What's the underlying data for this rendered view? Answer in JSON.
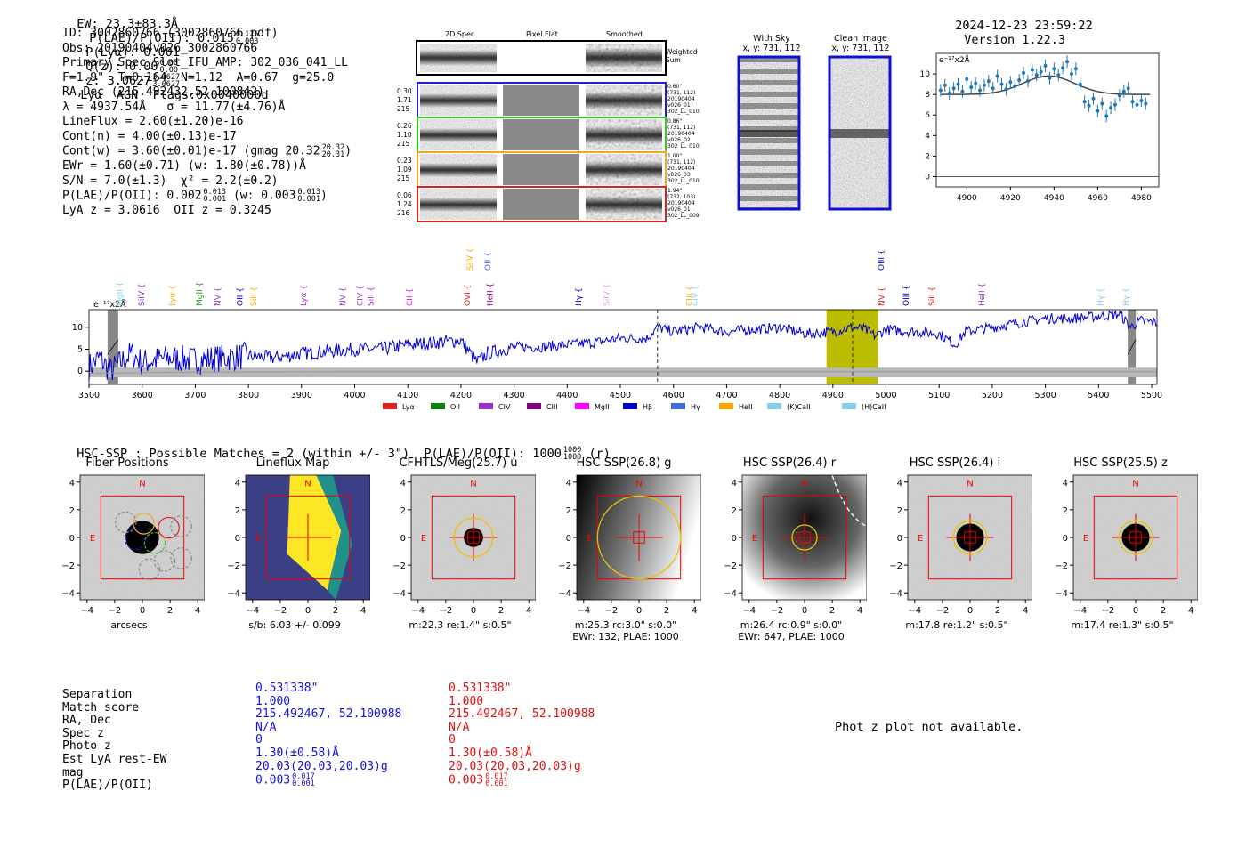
{
  "header": {
    "ew": "EW: 23.3±83.3Å",
    "plae_label": "P(LAE)/P(OII): 0.015",
    "plae_hi": "0.126",
    "plae_lo": "0.003",
    "plya": "P(Lyα): 0.001",
    "qz_label": "Q(z): 0.00",
    "qz_hi": "0.00",
    "qz_lo": "0.00",
    "z_label": "z: 3.0627",
    "z_hi": "3.0627",
    "z_lo": "3.0627",
    "tail": "Lyα  AGN  Flags:0x0040000d",
    "timestamp": "2024-12-23 23:59:22",
    "version": "Version 1.22.3"
  },
  "info": {
    "id": "ID: 3002860766 (3002860766.pdf)",
    "obs": "Obs: 20190404v026_3002860766",
    "primary": "Primary Spec_Slot_IFU_AMP: 302_036_041_LL",
    "fiber": "F=1.9\"  T=0.164  N=1.12  A=0.67  g=25.0",
    "radec": "RA,Dec (215.492432,52.100842)",
    "lambda": "λ = 4937.54Å   σ = 11.77(±4.76)Å",
    "lineflux": "LineFlux = 2.60(±1.20)e-16",
    "contn": "Cont(n) = 4.00(±0.13)e-17",
    "contw": "Cont(w) = 3.60(±0.01)e-17 (gmag 20.32",
    "contw_hi": "20.32",
    "contw_lo": "20.31",
    "contw_end": ")",
    "ewr": "EWr = 1.60(±0.71) (w: 1.80(±0.78))Å",
    "sn": "S/N = 7.0(±1.3)  χ² = 2.2(±0.2)",
    "plae": "P(LAE)/P(OII): 0.002",
    "plae_hi": "0.013",
    "plae_lo": "0.001",
    "plae_w": "(w: 0.003",
    "plae_w_hi": "0.013",
    "plae_w_lo": "0.001",
    "plae_end": ")",
    "lya": "LyA z = 3.0616  OII z = 0.3245"
  },
  "spec2d": {
    "col_labels": [
      "2D Spec",
      "Pixel Flat",
      "Smoothed"
    ],
    "weighted_sum": "Weighted Sum",
    "exposures": [
      {
        "left": [
          "0.30",
          "1.71",
          "215"
        ],
        "right": [
          "0.60\"",
          "(731, 112)",
          "20190404",
          "v026_01",
          "302_LL_010"
        ],
        "color": "#1f1fd8"
      },
      {
        "left": [
          "0.26",
          "1.10",
          "215"
        ],
        "right": [
          "0.86\"",
          "(731, 112)",
          "20190404",
          "v026_02",
          "302_LL_010"
        ],
        "color": "#2ecc20"
      },
      {
        "left": [
          "0.23",
          "1.09",
          "215"
        ],
        "right": [
          "1.00\"",
          "(731, 112)",
          "20190404",
          "v026_03",
          "302_LL_010"
        ],
        "color": "#f5a623"
      },
      {
        "left": [
          "0.06",
          "1.24",
          "216"
        ],
        "right": [
          "1.94\"",
          "(732, 103)",
          "20190404",
          "v026_01",
          "302_LL_009"
        ],
        "color": "#e02020"
      }
    ]
  },
  "stamps": {
    "with_sky": "With Sky",
    "with_sky_xy": "x, y: 731, 112",
    "clean": "Clean Image",
    "clean_xy": "x, y: 731, 112"
  },
  "fit_chart": {
    "unit": "e⁻¹⁷x2Å"
  },
  "spectrum_chart": {
    "unit": "e⁻¹⁷x2Å",
    "line_labels": [
      {
        "name": "MgII",
        "x": 3558,
        "color": "#87ceeb",
        "row": 0
      },
      {
        "name": "SiIV",
        "x": 3599,
        "color": "#8a2be2",
        "row": 0
      },
      {
        "name": "Lyα",
        "x": 3657,
        "color": "#ffa500",
        "row": 0
      },
      {
        "name": "MgII",
        "x": 3708,
        "color": "#228b22",
        "row": 0
      },
      {
        "name": "NV",
        "x": 3742,
        "color": "#9932cc",
        "row": 0
      },
      {
        "name": "OII",
        "x": 3784,
        "color": "#0000cd",
        "row": 0
      },
      {
        "name": "SiII",
        "x": 3810,
        "color": "#ffa500",
        "row": 0
      },
      {
        "name": "Lyα",
        "x": 3904,
        "color": "#9932cc",
        "row": 0
      },
      {
        "name": "NV",
        "x": 3977,
        "color": "#9932cc",
        "row": 0
      },
      {
        "name": "CIV",
        "x": 4010,
        "color": "#9932cc",
        "row": 0
      },
      {
        "name": "SiII",
        "x": 4030,
        "color": "#9932cc",
        "row": 0
      },
      {
        "name": "CII",
        "x": 4103,
        "color": "#ff00ff",
        "row": 0
      },
      {
        "name": "OVI",
        "x": 4212,
        "color": "#e02020",
        "row": 0
      },
      {
        "name": "HeII",
        "x": 4255,
        "color": "#8b008b",
        "row": 0
      },
      {
        "name": "SiIV",
        "x": 4217,
        "color": "#ffa500",
        "row": 1
      },
      {
        "name": "OII",
        "x": 4250,
        "color": "#4169e1",
        "row": 1
      },
      {
        "name": "Hγ",
        "x": 4421,
        "color": "#0000cd",
        "row": 0
      },
      {
        "name": "SiIV",
        "x": 4474,
        "color": "#dda0dd",
        "row": 0
      },
      {
        "name": "CIII",
        "x": 4630,
        "color": "#ffa500",
        "row": 0
      },
      {
        "name": "CIV",
        "x": 4640,
        "color": "#87ceeb",
        "row": 0
      },
      {
        "name": "OIII",
        "x": 4991,
        "color": "#0000cd",
        "row": 1
      },
      {
        "name": "NV",
        "x": 4992,
        "color": "#e02020",
        "row": 0
      },
      {
        "name": "OIII",
        "x": 5038,
        "color": "#0000cd",
        "row": 0
      },
      {
        "name": "SiII",
        "x": 5086,
        "color": "#e02020",
        "row": 0
      },
      {
        "name": "HeII",
        "x": 5180,
        "color": "#9932cc",
        "row": 0
      },
      {
        "name": "Hγ",
        "x": 5404,
        "color": "#87ceeb",
        "row": 0
      },
      {
        "name": "Hγ",
        "x": 5451,
        "color": "#87ceeb",
        "row": 0
      }
    ],
    "legend": [
      {
        "name": "Lyα",
        "color": "#e02020"
      },
      {
        "name": "OII",
        "color": "#108010"
      },
      {
        "name": "CIV",
        "color": "#9932cc"
      },
      {
        "name": "CIII",
        "color": "#800080"
      },
      {
        "name": "MgII",
        "color": "#ff00ff"
      },
      {
        "name": "Hβ",
        "color": "#0000cd"
      },
      {
        "name": "Hγ",
        "color": "#4169e1"
      },
      {
        "name": "HeII",
        "color": "#ffa500"
      },
      {
        "name": "(K)CaII",
        "color": "#87ceeb"
      },
      {
        "name": "(H)CaII",
        "color": "#87ceeb"
      }
    ]
  },
  "hsc": {
    "summary": "HSC-SSP : Possible Matches = 2 (within +/- 3\")  P(LAE)/P(OII): 1000",
    "summary_hi": "1000",
    "summary_lo": "1000",
    "summary_end": "(r)",
    "panels": [
      {
        "title": "Fiber Positions",
        "caption": [
          "arcsecs"
        ]
      },
      {
        "title": "Lineflux Map",
        "caption": [
          "s/b: 6.03 +/- 0.099"
        ]
      },
      {
        "title": "CFHTLS/Meg(25.7) u",
        "caption": [
          "m:22.3  re:1.4\"  s:0.5\""
        ]
      },
      {
        "title": "HSC SSP(26.8) g",
        "caption": [
          "m:25.3 rc:3.0\"  s:0.0\"",
          "EWr: 132, PLAE: 1000"
        ]
      },
      {
        "title": "HSC SSP(26.4) r",
        "caption": [
          "m:26.4 rc:0.9\"  s:0.0\"",
          "EWr: 647, PLAE: 1000"
        ]
      },
      {
        "title": "HSC SSP(26.4) i",
        "caption": [
          "m:17.8  re:1.2\"  s:0.5\""
        ]
      },
      {
        "title": "HSC SSP(25.5) z",
        "caption": [
          "m:17.4  re:1.3\"  s:0.5\""
        ]
      }
    ],
    "north": "N",
    "east": "E"
  },
  "table": {
    "labels": [
      "Separation",
      "Match score",
      "RA, Dec",
      "Spec z",
      "Photo z",
      "Est LyA rest-EW",
      "mag",
      "P(LAE)/P(OII)"
    ],
    "blue": [
      "0.531338\"",
      "1.000",
      "215.492467, 52.100988",
      "N/A",
      "0",
      "1.30(±0.58)Å",
      "20.03(20.03,20.03)g",
      "0.003"
    ],
    "blue_plae_hi": "0.017",
    "blue_plae_lo": "0.001",
    "red": [
      "0.531338\"",
      "1.000",
      "215.492467, 52.100988",
      "N/A",
      "0",
      "1.30(±0.58)Å",
      "20.03(20.03,20.03)g",
      "0.003"
    ],
    "red_plae_hi": "0.017",
    "red_plae_lo": "0.001",
    "colors": {
      "blue": "#1010e0",
      "red": "#e01010"
    }
  },
  "photz_msg": "Phot z plot not available.",
  "chart_data": [
    {
      "type": "scatter",
      "title": "",
      "xlabel": "",
      "ylabel": "e⁻¹⁷x2Å",
      "xlim": [
        4886,
        4988
      ],
      "ylim": [
        -1,
        12
      ],
      "xticks": [
        4900,
        4920,
        4940,
        4960,
        4980
      ],
      "yticks": [
        0,
        2,
        4,
        6,
        8,
        10
      ],
      "points": [
        [
          4888,
          8.4
        ],
        [
          4890,
          8.9
        ],
        [
          4892,
          8.1
        ],
        [
          4894,
          8.6
        ],
        [
          4896,
          9.0
        ],
        [
          4898,
          8.3
        ],
        [
          4900,
          9.5
        ],
        [
          4902,
          8.7
        ],
        [
          4904,
          9.1
        ],
        [
          4906,
          8.4
        ],
        [
          4908,
          8.9
        ],
        [
          4910,
          9.3
        ],
        [
          4912,
          8.6
        ],
        [
          4914,
          9.8
        ],
        [
          4916,
          9.0
        ],
        [
          4918,
          8.5
        ],
        [
          4920,
          9.2
        ],
        [
          4922,
          8.8
        ],
        [
          4924,
          9.4
        ],
        [
          4926,
          10.1
        ],
        [
          4928,
          9.3
        ],
        [
          4930,
          10.4
        ],
        [
          4932,
          9.9
        ],
        [
          4934,
          10.2
        ],
        [
          4936,
          10.8
        ],
        [
          4938,
          9.6
        ],
        [
          4940,
          10.5
        ],
        [
          4942,
          9.9
        ],
        [
          4944,
          10.6
        ],
        [
          4946,
          11.2
        ],
        [
          4948,
          10.0
        ],
        [
          4950,
          10.5
        ],
        [
          4952,
          9.0
        ],
        [
          4954,
          7.3
        ],
        [
          4956,
          6.9
        ],
        [
          4958,
          7.6
        ],
        [
          4960,
          6.4
        ],
        [
          4962,
          7.1
        ],
        [
          4964,
          5.9
        ],
        [
          4966,
          6.7
        ],
        [
          4968,
          7.0
        ],
        [
          4970,
          7.9
        ],
        [
          4972,
          8.3
        ],
        [
          4974,
          8.6
        ],
        [
          4976,
          7.3
        ],
        [
          4978,
          7.0
        ],
        [
          4980,
          7.4
        ],
        [
          4982,
          7.1
        ]
      ],
      "fit": {
        "continuum": 8.0,
        "amplitude": 1.8,
        "center": 4937.5,
        "sigma": 11.8
      }
    },
    {
      "type": "line",
      "title": "",
      "xlabel": "",
      "ylabel": "e⁻¹⁷x2Å",
      "xlim": [
        3500,
        5510
      ],
      "ylim": [
        -3,
        14
      ],
      "xticks": [
        3500,
        3600,
        3700,
        3800,
        3900,
        4000,
        4100,
        4200,
        4300,
        4400,
        4500,
        4600,
        4700,
        4800,
        4900,
        5000,
        5100,
        5200,
        5300,
        5400,
        5500
      ],
      "yticks": [
        0,
        5,
        10
      ],
      "series": [
        {
          "color": "#0000cd",
          "x": [
            3500,
            3520,
            3540,
            3560,
            3580,
            3600,
            3650,
            3700,
            3750,
            3800,
            3850,
            3900,
            3950,
            4000,
            4050,
            4100,
            4150,
            4200,
            4230,
            4250,
            4300,
            4350,
            4400,
            4450,
            4500,
            4550,
            4570,
            4600,
            4650,
            4700,
            4750,
            4800,
            4850,
            4900,
            4937,
            4960,
            4980,
            5000,
            5050,
            5100,
            5130,
            5150,
            5200,
            5250,
            5300,
            5350,
            5400,
            5440,
            5460,
            5480,
            5510
          ],
          "y": [
            1,
            3,
            0,
            2,
            4,
            2,
            3,
            2.5,
            3,
            3.5,
            3,
            4,
            4.5,
            5,
            5,
            6,
            6.5,
            7,
            2,
            4,
            5.5,
            5.5,
            6,
            6.5,
            7.5,
            7.5,
            10,
            9,
            10,
            9,
            9.5,
            10,
            8.5,
            9,
            10,
            9.5,
            8,
            9.5,
            9,
            8.5,
            6,
            9,
            10,
            11,
            12,
            12,
            12.5,
            13,
            10,
            11.5,
            11
          ]
        },
        {
          "color": "#999999",
          "x": [
            3500,
            3600,
            3700,
            4000,
            4500,
            5000,
            5510
          ],
          "y": [
            -0.5,
            -0.3,
            -0.2,
            -0.1,
            -0.1,
            -0.1,
            -0.1
          ]
        }
      ],
      "markers": {
        "dashed_x": [
          4570,
          4937
        ],
        "highlight": [
          4888,
          4985
        ],
        "masked": [
          [
            3535,
            3555
          ],
          [
            5455,
            5470
          ]
        ]
      }
    }
  ]
}
